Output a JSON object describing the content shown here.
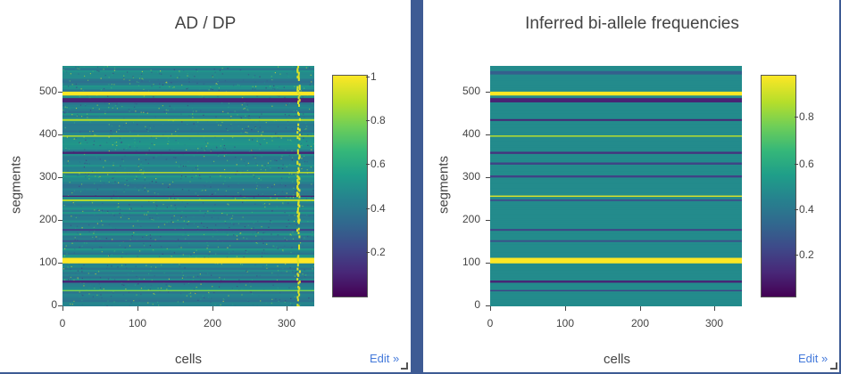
{
  "colors": {
    "panel_border": "#3e5b94",
    "link": "#447adb",
    "colormap": "viridis"
  },
  "panels": [
    {
      "edit_label": "Edit »"
    },
    {
      "edit_label": "Edit »"
    }
  ],
  "chart_data": [
    {
      "type": "heatmap",
      "title": "AD / DP",
      "xlabel": "cells",
      "ylabel": "segments",
      "xlim": [
        0,
        337
      ],
      "ylim": [
        0,
        560
      ],
      "x_ticks": [
        "0",
        "100",
        "200",
        "300"
      ],
      "y_ticks": [
        "0",
        "100",
        "200",
        "300",
        "400",
        "500"
      ],
      "colorbar": {
        "range": [
          0,
          1
        ],
        "ticks": [
          "0.2",
          "0.4",
          "0.6",
          "0.8",
          "1"
        ],
        "colormap": "viridis"
      },
      "rows": 560,
      "cols": 337,
      "background_value": 0.45,
      "noise": 0.15,
      "bands": [
        {
          "from": 491,
          "to": 500,
          "value": 1.0
        },
        {
          "from": 475,
          "to": 485,
          "value": 0.1
        },
        {
          "from": 432,
          "to": 436,
          "value": 0.9
        },
        {
          "from": 395,
          "to": 398,
          "value": 0.9
        },
        {
          "from": 355,
          "to": 360,
          "value": 0.1
        },
        {
          "from": 310,
          "to": 313,
          "value": 0.9
        },
        {
          "from": 255,
          "to": 258,
          "value": 0.1
        },
        {
          "from": 245,
          "to": 249,
          "value": 0.9
        },
        {
          "from": 176,
          "to": 180,
          "value": 0.2
        },
        {
          "from": 150,
          "to": 154,
          "value": 0.25
        },
        {
          "from": 100,
          "to": 113,
          "value": 1.0
        },
        {
          "from": 55,
          "to": 60,
          "value": 0.1
        },
        {
          "from": 35,
          "to": 38,
          "value": 0.8
        }
      ],
      "highlight_column": {
        "from": 313,
        "to": 318,
        "value": 0.95
      }
    },
    {
      "type": "heatmap",
      "title": "Inferred bi-allele frequencies",
      "xlabel": "cells",
      "ylabel": "segments",
      "xlim": [
        0,
        337
      ],
      "ylim": [
        0,
        560
      ],
      "x_ticks": [
        "0",
        "100",
        "200",
        "300"
      ],
      "y_ticks": [
        "0",
        "100",
        "200",
        "300",
        "400",
        "500"
      ],
      "colorbar": {
        "range": [
          0,
          1
        ],
        "ticks": [
          "0.2",
          "0.4",
          "0.6",
          "0.8"
        ],
        "colormap": "viridis"
      },
      "rows": 560,
      "cols": 337,
      "background_value": 0.48,
      "noise": 0.0,
      "bands": [
        {
          "from": 540,
          "to": 548,
          "value": 0.3
        },
        {
          "from": 491,
          "to": 500,
          "value": 1.0
        },
        {
          "from": 475,
          "to": 485,
          "value": 0.1
        },
        {
          "from": 432,
          "to": 436,
          "value": 0.1
        },
        {
          "from": 395,
          "to": 398,
          "value": 0.9
        },
        {
          "from": 355,
          "to": 360,
          "value": 0.15
        },
        {
          "from": 330,
          "to": 335,
          "value": 0.2
        },
        {
          "from": 300,
          "to": 305,
          "value": 0.2
        },
        {
          "from": 255,
          "to": 258,
          "value": 0.95
        },
        {
          "from": 245,
          "to": 249,
          "value": 0.25
        },
        {
          "from": 176,
          "to": 180,
          "value": 0.2
        },
        {
          "from": 150,
          "to": 154,
          "value": 0.25
        },
        {
          "from": 100,
          "to": 113,
          "value": 1.0
        },
        {
          "from": 55,
          "to": 60,
          "value": 0.1
        },
        {
          "from": 35,
          "to": 38,
          "value": 0.2
        }
      ],
      "highlight_column": null
    }
  ]
}
